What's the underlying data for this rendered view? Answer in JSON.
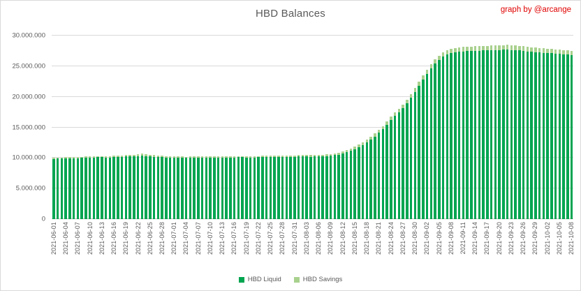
{
  "watermark": "graph by @arcange",
  "chart_data": {
    "type": "bar",
    "stacked": true,
    "title": "HBD Balances",
    "xlabel": "",
    "ylabel": "",
    "unit": "HBD",
    "values_in": "millions",
    "ylim": [
      0,
      30
    ],
    "y_tick_step_millions": 5,
    "y_tick_labels": [
      "0",
      "5.000.000",
      "10.000.000",
      "15.000.000",
      "20.000.000",
      "25.000.000",
      "30.000.000"
    ],
    "grid": true,
    "legend_position": "bottom",
    "colors": {
      "liquid": "#00a550",
      "savings": "#a9d18e",
      "gridline": "#d9d9d9",
      "axis_text": "#595959",
      "title_text": "#595959",
      "watermark_text": "#e00000"
    },
    "series": [
      {
        "name": "HBD Liquid",
        "key": "liquid",
        "color": "#00a550"
      },
      {
        "name": "HBD Savings",
        "key": "savings",
        "color": "#a9d18e"
      }
    ],
    "x_start_date": "2021-06-01",
    "x_end_date": "2021-10-08",
    "x_tick_every_n_bars": 3,
    "x_tick_labels": [
      "2021-06-01",
      "2021-06-04",
      "2021-06-07",
      "2021-06-10",
      "2021-06-13",
      "2021-06-16",
      "2021-06-19",
      "2021-06-22",
      "2021-06-25",
      "2021-06-28",
      "2021-07-01",
      "2021-07-04",
      "2021-07-07",
      "2021-07-10",
      "2021-07-13",
      "2021-07-16",
      "2021-07-19",
      "2021-07-22",
      "2021-07-25",
      "2021-07-28",
      "2021-07-31",
      "2021-08-03",
      "2021-08-06",
      "2021-08-09",
      "2021-08-12",
      "2021-08-15",
      "2021-08-18",
      "2021-08-21",
      "2021-08-24",
      "2021-08-27",
      "2021-08-30",
      "2021-09-02",
      "2021-09-05",
      "2021-09-08",
      "2021-09-11",
      "2021-09-14",
      "2021-09-17",
      "2021-09-20",
      "2021-09-23",
      "2021-09-26",
      "2021-09-29",
      "2021-10-02",
      "2021-10-05",
      "2021-10-08"
    ],
    "liquid": [
      9.85,
      9.88,
      9.9,
      9.93,
      9.95,
      9.97,
      9.98,
      10.0,
      10.02,
      10.05,
      10.08,
      10.1,
      10.1,
      10.06,
      10.08,
      10.1,
      10.14,
      10.18,
      10.22,
      10.25,
      10.24,
      10.28,
      10.35,
      10.28,
      10.24,
      10.2,
      10.15,
      10.1,
      10.06,
      10.04,
      10.05,
      10.03,
      10.01,
      10.0,
      10.02,
      10.04,
      10.05,
      10.06,
      10.05,
      10.03,
      10.02,
      10.02,
      10.04,
      10.05,
      10.06,
      10.08,
      10.1,
      10.1,
      10.08,
      10.06,
      10.08,
      10.1,
      10.12,
      10.14,
      10.16,
      10.14,
      10.12,
      10.14,
      10.16,
      10.18,
      10.2,
      10.22,
      10.24,
      10.22,
      10.2,
      10.22,
      10.25,
      10.28,
      10.32,
      10.38,
      10.45,
      10.55,
      10.7,
      10.9,
      11.15,
      11.45,
      11.8,
      12.15,
      12.55,
      13.0,
      13.5,
      14.1,
      14.7,
      15.45,
      16.2,
      16.85,
      17.45,
      18.1,
      18.9,
      19.8,
      20.8,
      21.8,
      22.8,
      23.75,
      24.6,
      25.4,
      26.05,
      26.55,
      26.9,
      27.1,
      27.25,
      27.35,
      27.4,
      27.45,
      27.45,
      27.5,
      27.52,
      27.55,
      27.58,
      27.6,
      27.62,
      27.65,
      27.68,
      27.7,
      27.65,
      27.6,
      27.55,
      27.5,
      27.42,
      27.35,
      27.3,
      27.25,
      27.2,
      27.15,
      27.1,
      27.05,
      27.0,
      26.95,
      26.9,
      26.85
    ],
    "savings": [
      0.18,
      0.18,
      0.18,
      0.19,
      0.19,
      0.19,
      0.19,
      0.2,
      0.2,
      0.2,
      0.21,
      0.21,
      0.22,
      0.22,
      0.22,
      0.23,
      0.23,
      0.24,
      0.25,
      0.26,
      0.28,
      0.3,
      0.32,
      0.3,
      0.28,
      0.26,
      0.25,
      0.24,
      0.23,
      0.22,
      0.21,
      0.21,
      0.21,
      0.2,
      0.2,
      0.2,
      0.2,
      0.2,
      0.2,
      0.2,
      0.2,
      0.2,
      0.2,
      0.2,
      0.21,
      0.21,
      0.21,
      0.21,
      0.21,
      0.21,
      0.22,
      0.22,
      0.22,
      0.22,
      0.22,
      0.23,
      0.23,
      0.23,
      0.23,
      0.24,
      0.24,
      0.24,
      0.25,
      0.25,
      0.25,
      0.26,
      0.26,
      0.27,
      0.27,
      0.28,
      0.29,
      0.3,
      0.32,
      0.34,
      0.36,
      0.38,
      0.4,
      0.42,
      0.44,
      0.46,
      0.48,
      0.5,
      0.52,
      0.54,
      0.56,
      0.58,
      0.6,
      0.62,
      0.63,
      0.64,
      0.65,
      0.66,
      0.67,
      0.68,
      0.69,
      0.7,
      0.7,
      0.71,
      0.72,
      0.72,
      0.73,
      0.73,
      0.74,
      0.74,
      0.75,
      0.75,
      0.75,
      0.76,
      0.76,
      0.77,
      0.77,
      0.78,
      0.78,
      0.78,
      0.77,
      0.77,
      0.76,
      0.76,
      0.75,
      0.74,
      0.74,
      0.73,
      0.73,
      0.72,
      0.72,
      0.71,
      0.71,
      0.7,
      0.7,
      0.7
    ]
  },
  "legend": {
    "liquid_label": "HBD Liquid",
    "savings_label": "HBD Savings"
  }
}
